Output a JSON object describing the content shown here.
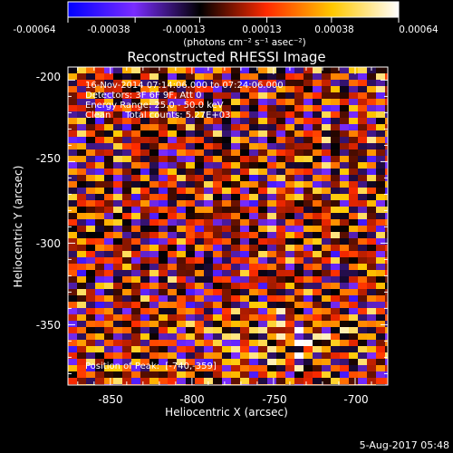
{
  "colorbar": {
    "tick_labels": [
      "-0.00064",
      "-0.00038",
      "-0.00013",
      "0.00013",
      "0.00038",
      "0.00064"
    ],
    "ticks": [
      -0.00064,
      -0.00038,
      -0.00013,
      0.00013,
      0.00038,
      0.00064
    ],
    "range": [
      -0.00064,
      0.00064
    ],
    "unit_label": "(photons cm⁻² s⁻¹ asec⁻²)",
    "colors": [
      "#0000ff",
      "#7a2cff",
      "#000000",
      "#ff2a00",
      "#ffc800",
      "#ffffff"
    ]
  },
  "chart_data": {
    "type": "heatmap",
    "title": "Reconstructed RHESSI Image",
    "xlabel": "Heliocentric X (arcsec)",
    "ylabel": "Heliocentric Y (arcsec)",
    "xlim": [
      -876,
      -680
    ],
    "ylim": [
      -387,
      -192
    ],
    "x_ticks": [
      -850,
      -800,
      -750,
      -700
    ],
    "x_tick_labels": [
      "-850",
      "-800",
      "-750",
      "-700"
    ],
    "y_ticks": [
      -200,
      -250,
      -300,
      -350
    ],
    "y_tick_labels": [
      "-200",
      "-250",
      "-300",
      "-350"
    ],
    "value_range": [
      -0.00064,
      0.00064
    ],
    "stripe_slope": 0.27,
    "peak_position": [
      -740,
      -359
    ],
    "annotations": [
      "16-Nov-2014 07:14:06.000 to 07:24:06.000",
      "Detectors: 3F 6F 9F, Att 0",
      "Energy Range: 25.0 - 50.0 keV",
      "Clean     Total counts: 5.27E+03"
    ],
    "peak_label": "Position of Peak:  [-740,-359]"
  },
  "footer": {
    "date_stamp": "5-Aug-2017 05:48"
  }
}
